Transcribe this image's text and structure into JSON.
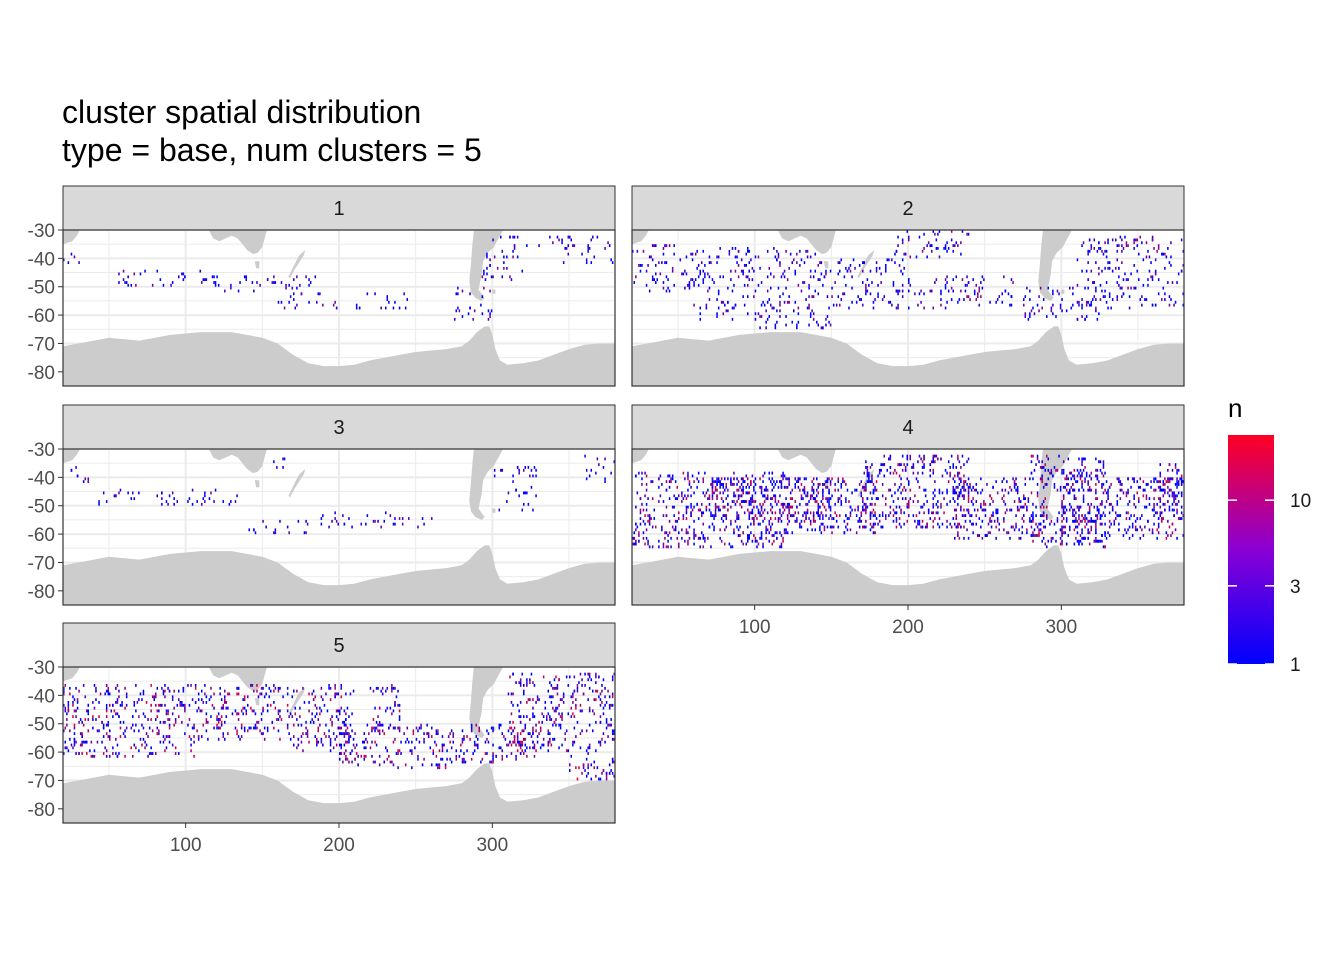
{
  "title_line1": "cluster spatial distribution",
  "title_line2": "type = base, num clusters = 5",
  "chart_data": {
    "type": "heatmap",
    "facet_variable": "cluster",
    "facets": [
      "1",
      "2",
      "3",
      "4",
      "5"
    ],
    "xlim": [
      20,
      380
    ],
    "ylim": [
      -85,
      -30
    ],
    "x_ticks": [
      100,
      200,
      300
    ],
    "y_ticks": [
      -30,
      -40,
      -50,
      -60,
      -70,
      -80
    ],
    "x_tick_labels": [
      "100",
      "200",
      "300"
    ],
    "y_tick_labels": [
      "-30",
      "-40",
      "-50",
      "-60",
      "-70",
      "-80"
    ],
    "legend": {
      "title": "n",
      "scale": "log",
      "min": 1,
      "max": 25,
      "breaks": [
        1,
        3,
        10
      ],
      "break_labels": [
        "1",
        "3",
        "10"
      ],
      "low_color": "#0000ff",
      "high_color": "#ff0022",
      "placement": "right"
    },
    "land_color": "#cccccc",
    "grid": true,
    "land": {
      "antarctica": [
        [
          20,
          -71
        ],
        [
          30,
          -70
        ],
        [
          40,
          -69
        ],
        [
          50,
          -68
        ],
        [
          60,
          -68.5
        ],
        [
          70,
          -69
        ],
        [
          80,
          -68
        ],
        [
          90,
          -67
        ],
        [
          100,
          -66.5
        ],
        [
          110,
          -66
        ],
        [
          120,
          -66
        ],
        [
          130,
          -66
        ],
        [
          140,
          -67
        ],
        [
          150,
          -68
        ],
        [
          160,
          -70
        ],
        [
          165,
          -72
        ],
        [
          170,
          -74
        ],
        [
          180,
          -77
        ],
        [
          190,
          -78
        ],
        [
          200,
          -78
        ],
        [
          210,
          -77.5
        ],
        [
          220,
          -76
        ],
        [
          230,
          -75
        ],
        [
          240,
          -74
        ],
        [
          250,
          -73
        ],
        [
          260,
          -72.5
        ],
        [
          270,
          -72
        ],
        [
          280,
          -71
        ],
        [
          285,
          -69
        ],
        [
          290,
          -66
        ],
        [
          295,
          -64
        ],
        [
          298,
          -64
        ],
        [
          300,
          -67
        ],
        [
          302,
          -72
        ],
        [
          305,
          -76
        ],
        [
          310,
          -77.5
        ],
        [
          320,
          -77
        ],
        [
          330,
          -76
        ],
        [
          340,
          -74
        ],
        [
          350,
          -72
        ],
        [
          360,
          -70.5
        ],
        [
          370,
          -70
        ],
        [
          380,
          -70
        ],
        [
          380,
          -85
        ],
        [
          20,
          -85
        ]
      ],
      "africa": [
        [
          20,
          -30
        ],
        [
          20,
          -35
        ],
        [
          23,
          -34.5
        ],
        [
          26,
          -34
        ],
        [
          29,
          -32
        ],
        [
          31,
          -30
        ]
      ],
      "australia": [
        [
          115,
          -30
        ],
        [
          118,
          -33
        ],
        [
          122,
          -34
        ],
        [
          126,
          -33
        ],
        [
          130,
          -32
        ],
        [
          134,
          -33
        ],
        [
          137,
          -35
        ],
        [
          140,
          -37
        ],
        [
          144,
          -38.5
        ],
        [
          147,
          -38
        ],
        [
          150,
          -36
        ],
        [
          153,
          -30
        ]
      ],
      "tasmania": [
        [
          145,
          -41
        ],
        [
          148,
          -41
        ],
        [
          148,
          -43.5
        ],
        [
          146,
          -43.5
        ]
      ],
      "new_zealand": [
        [
          167,
          -46.5
        ],
        [
          172,
          -41
        ],
        [
          174,
          -39
        ],
        [
          178,
          -37
        ],
        [
          177,
          -39
        ],
        [
          171,
          -44
        ],
        [
          168,
          -47
        ]
      ],
      "south_america": [
        [
          288,
          -30
        ],
        [
          287,
          -35
        ],
        [
          286,
          -42
        ],
        [
          285,
          -48
        ],
        [
          286,
          -52
        ],
        [
          289,
          -54
        ],
        [
          293,
          -55
        ],
        [
          295,
          -54
        ],
        [
          291,
          -51
        ],
        [
          293,
          -46
        ],
        [
          294,
          -41
        ],
        [
          297,
          -38
        ],
        [
          301,
          -36
        ],
        [
          303,
          -34
        ],
        [
          307,
          -30
        ]
      ],
      "falklands": [
        [
          300,
          -51
        ],
        [
          302,
          -51
        ],
        [
          302,
          -52.5
        ],
        [
          300,
          -52.5
        ]
      ]
    },
    "clusters": [
      {
        "name": "1",
        "density": 0.15,
        "max_n": 6,
        "regions": [
          [
            20,
            35,
            -42,
            -38
          ],
          [
            55,
            120,
            -50,
            -44
          ],
          [
            110,
            185,
            -52,
            -46
          ],
          [
            160,
            200,
            -58,
            -52
          ],
          [
            210,
            245,
            -58,
            -52
          ],
          [
            275,
            300,
            -62,
            -50
          ],
          [
            290,
            320,
            -48,
            -36
          ],
          [
            300,
            350,
            -36,
            -32
          ],
          [
            345,
            380,
            -42,
            -32
          ]
        ]
      },
      {
        "name": "2",
        "density": 0.18,
        "max_n": 8,
        "regions": [
          [
            20,
            60,
            -52,
            -35
          ],
          [
            60,
            140,
            -62,
            -36
          ],
          [
            140,
            200,
            -58,
            -40
          ],
          [
            190,
            240,
            -40,
            -30
          ],
          [
            200,
            270,
            -58,
            -46
          ],
          [
            275,
            330,
            -62,
            -50
          ],
          [
            310,
            380,
            -58,
            -32
          ],
          [
            100,
            150,
            -65,
            -60
          ]
        ]
      },
      {
        "name": "3",
        "density": 0.13,
        "max_n": 6,
        "regions": [
          [
            20,
            40,
            -42,
            -36
          ],
          [
            40,
            120,
            -50,
            -44
          ],
          [
            100,
            140,
            -50,
            -46
          ],
          [
            140,
            180,
            -60,
            -54
          ],
          [
            180,
            240,
            -58,
            -52
          ],
          [
            235,
            265,
            -58,
            -54
          ],
          [
            300,
            330,
            -52,
            -36
          ],
          [
            360,
            380,
            -42,
            -32
          ],
          [
            155,
            165,
            -38,
            -31
          ]
        ]
      },
      {
        "name": "4",
        "density": 0.32,
        "max_n": 15,
        "regions": [
          [
            20,
            120,
            -65,
            -38
          ],
          [
            70,
            150,
            -55,
            -40
          ],
          [
            120,
            180,
            -60,
            -40
          ],
          [
            170,
            240,
            -58,
            -32
          ],
          [
            230,
            290,
            -62,
            -40
          ],
          [
            280,
            330,
            -65,
            -50
          ],
          [
            300,
            380,
            -62,
            -40
          ],
          [
            280,
            330,
            -45,
            -32
          ],
          [
            360,
            380,
            -55,
            -35
          ]
        ]
      },
      {
        "name": "5",
        "density": 0.26,
        "max_n": 18,
        "regions": [
          [
            20,
            110,
            -62,
            -36
          ],
          [
            110,
            170,
            -56,
            -36
          ],
          [
            170,
            210,
            -60,
            -36
          ],
          [
            200,
            270,
            -66,
            -50
          ],
          [
            220,
            240,
            -52,
            -36
          ],
          [
            270,
            330,
            -64,
            -50
          ],
          [
            310,
            380,
            -60,
            -32
          ],
          [
            350,
            380,
            -70,
            -60
          ]
        ]
      }
    ]
  }
}
